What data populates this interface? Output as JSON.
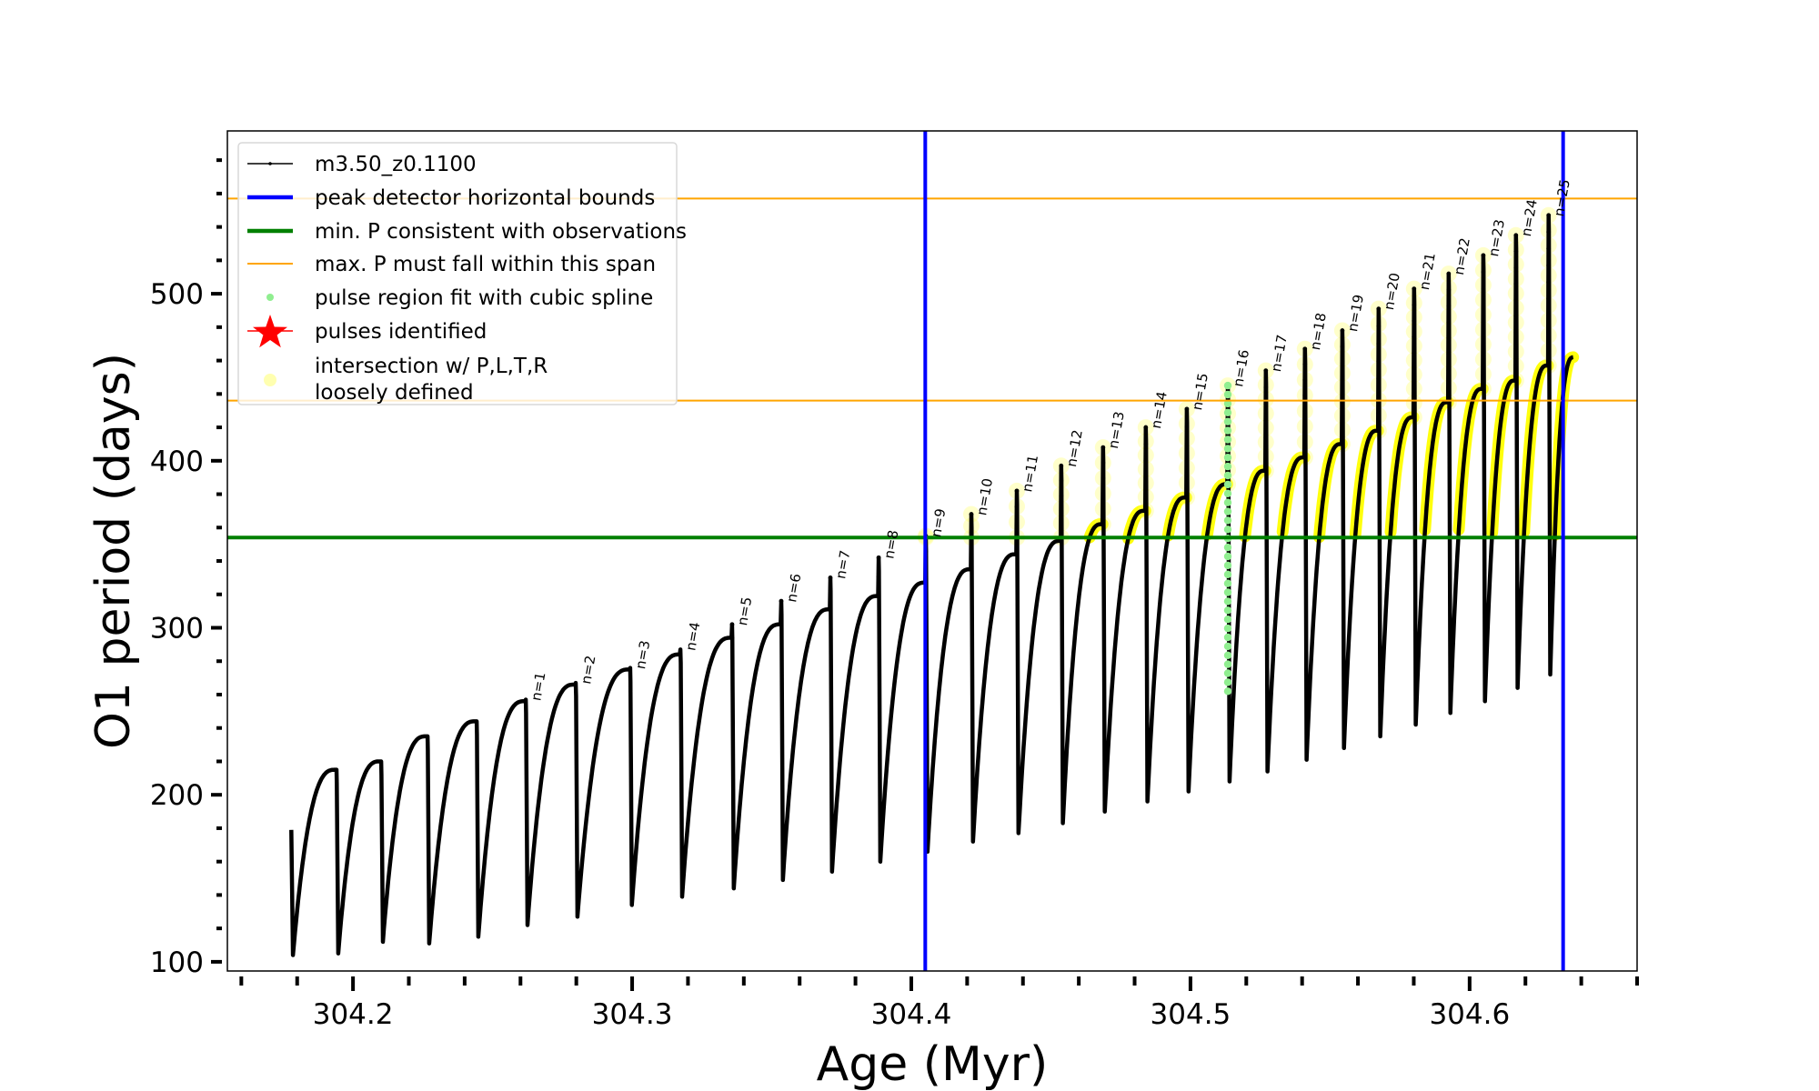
{
  "chart_data": {
    "type": "line",
    "xlabel": "Age (Myr)",
    "ylabel": "O1 period (days)",
    "xlim": [
      304.155,
      304.66
    ],
    "ylim": [
      94.5,
      597.5
    ],
    "x_major_ticks": [
      304.2,
      304.3,
      304.4,
      304.5,
      304.6
    ],
    "x_tick_labels": [
      "304.2",
      "304.3",
      "304.4",
      "304.5",
      "304.6"
    ],
    "x_minor_step": 0.02,
    "y_major_ticks": [
      100,
      200,
      300,
      400,
      500
    ],
    "y_tick_labels": [
      "100",
      "200",
      "300",
      "400",
      "500"
    ],
    "y_minor_step": 20,
    "grid": false,
    "legend_placement": "upper-left",
    "legend": [
      {
        "label": "m3.50_z0.1100",
        "kind": "line-marker",
        "color": "#000000"
      },
      {
        "label": "peak detector horizontal bounds",
        "kind": "line-thick",
        "color": "#0000ff"
      },
      {
        "label": "min. P consistent with observations",
        "kind": "line-thick",
        "color": "#008000"
      },
      {
        "label": "max. P must fall within this span",
        "kind": "line-thin",
        "color": "#ffa500"
      },
      {
        "label": "pulse region fit with cubic spline",
        "kind": "dot",
        "color": "#90ee90"
      },
      {
        "label": "pulses identified",
        "kind": "star",
        "color": "#ff0000"
      },
      {
        "label": "intersection w/ P,L,T,R",
        "label2": "loosely defined",
        "kind": "circle",
        "color": "#ffffb0"
      }
    ],
    "vertical_lines": [
      {
        "name": "peak detector horizontal bounds",
        "x": [
          304.405,
          304.6335
        ],
        "color": "#0000ff"
      }
    ],
    "horizontal_lines": [
      {
        "name": "min. P consistent with observations",
        "y": 354,
        "color": "#008000"
      },
      {
        "name": "max. P must fall within this span",
        "y": [
          436,
          557
        ],
        "color": "#ffa500"
      }
    ],
    "series": {
      "name": "m3.50_z0.1100",
      "color": "#000000",
      "start": {
        "age": 304.1779,
        "P": 179,
        "min_P": 104,
        "min_age": 304.1785
      },
      "end": {
        "age": 304.6371,
        "P": 462
      },
      "cycles": [
        {
          "label": "",
          "age": 304.1941,
          "curve_peak": 215,
          "spike_peak": 215,
          "min_after": 105
        },
        {
          "label": "",
          "age": 304.2101,
          "curve_peak": 220,
          "spike_peak": 220,
          "min_after": 112
        },
        {
          "label": "",
          "age": 304.2267,
          "curve_peak": 235,
          "spike_peak": 235,
          "min_after": 111
        },
        {
          "label": "",
          "age": 304.2443,
          "curve_peak": 244,
          "spike_peak": 244,
          "min_after": 115
        },
        {
          "label": "n=1",
          "age": 304.2619,
          "curve_peak": 256,
          "spike_peak": 257,
          "min_after": 122
        },
        {
          "label": "n=2",
          "age": 304.2798,
          "curve_peak": 266,
          "spike_peak": 267,
          "min_after": 127
        },
        {
          "label": "n=3",
          "age": 304.2993,
          "curve_peak": 275,
          "spike_peak": 276,
          "min_after": 134
        },
        {
          "label": "n=4",
          "age": 304.3173,
          "curve_peak": 284,
          "spike_peak": 287,
          "min_after": 139
        },
        {
          "label": "n=5",
          "age": 304.3358,
          "curve_peak": 294,
          "spike_peak": 302,
          "min_after": 144
        },
        {
          "label": "n=6",
          "age": 304.3534,
          "curve_peak": 302,
          "spike_peak": 316,
          "min_after": 149
        },
        {
          "label": "n=7",
          "age": 304.371,
          "curve_peak": 311,
          "spike_peak": 330,
          "min_after": 154
        },
        {
          "label": "n=8",
          "age": 304.3883,
          "curve_peak": 319,
          "spike_peak": 342,
          "min_after": 160
        },
        {
          "label": "n=9",
          "age": 304.4052,
          "curve_peak": 327,
          "spike_peak": 355,
          "min_after": 166
        },
        {
          "label": "n=10",
          "age": 304.4215,
          "curve_peak": 335,
          "spike_peak": 368,
          "min_after": 172
        },
        {
          "label": "n=11",
          "age": 304.4378,
          "curve_peak": 344,
          "spike_peak": 382,
          "min_after": 177
        },
        {
          "label": "n=12",
          "age": 304.4537,
          "curve_peak": 352,
          "spike_peak": 397,
          "min_after": 183
        },
        {
          "label": "n=13",
          "age": 304.4687,
          "curve_peak": 362,
          "spike_peak": 408,
          "min_after": 190
        },
        {
          "label": "n=14",
          "age": 304.484,
          "curve_peak": 370,
          "spike_peak": 420,
          "min_after": 196
        },
        {
          "label": "n=15",
          "age": 304.4987,
          "curve_peak": 378,
          "spike_peak": 431,
          "min_after": 202
        },
        {
          "label": "n=16",
          "age": 304.5134,
          "curve_peak": 386,
          "spike_peak": 445,
          "min_after": 208
        },
        {
          "label": "n=17",
          "age": 304.527,
          "curve_peak": 394,
          "spike_peak": 454,
          "min_after": 214
        },
        {
          "label": "n=18",
          "age": 304.541,
          "curve_peak": 402,
          "spike_peak": 467,
          "min_after": 221
        },
        {
          "label": "n=19",
          "age": 304.5544,
          "curve_peak": 410,
          "spike_peak": 478,
          "min_after": 228
        },
        {
          "label": "n=20",
          "age": 304.5674,
          "curve_peak": 418,
          "spike_peak": 491,
          "min_after": 235
        },
        {
          "label": "n=21",
          "age": 304.5801,
          "curve_peak": 426,
          "spike_peak": 503,
          "min_after": 242
        },
        {
          "label": "n=22",
          "age": 304.5925,
          "curve_peak": 435,
          "spike_peak": 512,
          "min_after": 249
        },
        {
          "label": "n=23",
          "age": 304.6049,
          "curve_peak": 443,
          "spike_peak": 523,
          "min_after": 256
        },
        {
          "label": "n=24",
          "age": 304.6166,
          "curve_peak": 448,
          "spike_peak": 535,
          "min_after": 264
        },
        {
          "label": "n=25",
          "age": 304.6283,
          "curve_peak": 457,
          "spike_peak": 547,
          "min_after": 272
        }
      ]
    },
    "spline_region": {
      "pulse": "n=16",
      "P_range": [
        262,
        445
      ],
      "color": "#90ee90"
    },
    "yellow_highlight": {
      "color": "#ffff00",
      "above_P": 354
    }
  }
}
